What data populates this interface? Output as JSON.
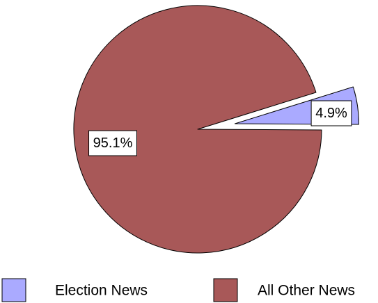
{
  "chart_data": {
    "type": "pie",
    "title": "",
    "slices": [
      {
        "label": "Election News",
        "value": 4.9,
        "display": "4.9%",
        "color": "#aaaaff",
        "exploded": true
      },
      {
        "label": "All Other News",
        "value": 95.1,
        "display": "95.1%",
        "color": "#a85858",
        "exploded": false
      }
    ],
    "legend": {
      "placement": "bottom",
      "items": [
        "Election News",
        "All Other News"
      ]
    }
  }
}
